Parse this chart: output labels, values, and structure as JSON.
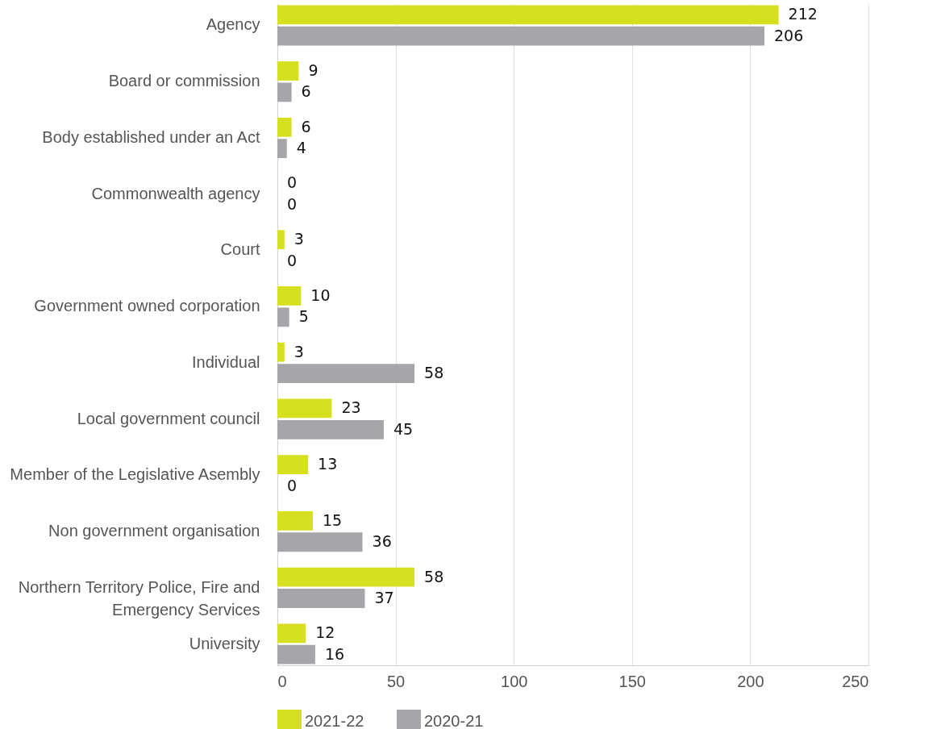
{
  "chart_data": {
    "type": "bar",
    "orientation": "horizontal",
    "categories": [
      "Agency",
      "Board or commission",
      "Body established under an Act",
      "Commonwealth agency",
      "Court",
      "Government owned corporation",
      "Individual",
      "Local government council",
      "Member of the Legislative Asembly",
      "Non government organisation",
      "Northern Territory Police, Fire and\nEmergency Services",
      "University"
    ],
    "series": [
      {
        "name": "2021-22",
        "color": "#d5e021",
        "values": [
          212,
          9,
          6,
          0,
          3,
          10,
          3,
          23,
          13,
          15,
          58,
          12
        ]
      },
      {
        "name": "2020-21",
        "color": "#a6a6aa",
        "values": [
          206,
          6,
          4,
          0,
          0,
          5,
          58,
          45,
          0,
          36,
          37,
          16
        ]
      }
    ],
    "xlim": [
      0,
      250
    ],
    "xticks": [
      0,
      50,
      100,
      150,
      200,
      250
    ],
    "grid": "x",
    "legend": "bottom",
    "data_labels": true
  }
}
